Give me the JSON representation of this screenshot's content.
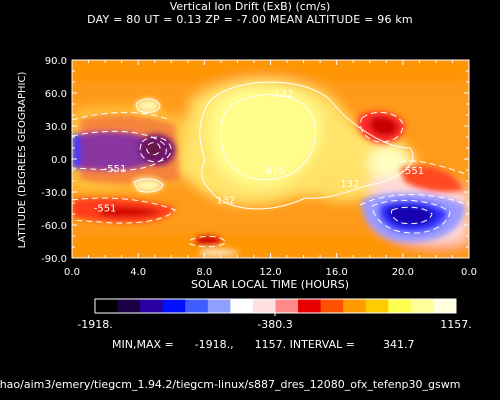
{
  "header": {
    "title": "Vertical Ion Drift (ExB) (cm/s)",
    "subtitle": "DAY =  80  UT =  0.13  ZP =  -7.00  MEAN ALTITUDE =  96 km"
  },
  "chart_data": {
    "type": "heatmap",
    "xlabel": "SOLAR LOCAL TIME (HOURS)",
    "ylabel": "LATITUDE (DEGREES GEOGRAPHIC)",
    "xlim": [
      0,
      24
    ],
    "ylim": [
      -90,
      90
    ],
    "x_ticks": [
      "0.0",
      "4.0",
      "8.0",
      "12.0",
      "16.0",
      "20.0",
      "0.0"
    ],
    "y_ticks": [
      "90.0",
      "60.0",
      "30.0",
      "0.0",
      "-30.0",
      "-60.0",
      "-90.0"
    ],
    "grid": false,
    "contour_labels": [
      {
        "text": "132",
        "x": 12.8,
        "y": 60
      },
      {
        "text": "-551",
        "x": 2.6,
        "y": -8
      },
      {
        "text": "816",
        "x": 12.3,
        "y": -10
      },
      {
        "text": "132",
        "x": 16.8,
        "y": -22
      },
      {
        "text": "132",
        "x": 9.3,
        "y": -37
      },
      {
        "text": "-551",
        "x": 2.0,
        "y": -44
      },
      {
        "text": "-551",
        "x": 20.6,
        "y": -10
      }
    ],
    "colorbar": {
      "min_label": "-1918.",
      "mid_label": "-380.3",
      "max_label": "1157.",
      "colors": [
        "#000000",
        "#1a0044",
        "#2a00a0",
        "#0010ff",
        "#3f5cff",
        "#8f9fff",
        "#ffffff",
        "#ffe0e0",
        "#ff8888",
        "#e80000",
        "#ff5000",
        "#ff9a00",
        "#ffcc00",
        "#ffff50",
        "#ffff99",
        "#ffffe0"
      ]
    },
    "stats": "MIN,MAX =      -1918.,      1157. INTERVAL =        341.7"
  },
  "footer": {
    "path": "/hao/aim3/emery/tiegcm_1.94.2/tiegcm-linux/s887_dres_12080_ofx_tefenp30_gswm"
  }
}
